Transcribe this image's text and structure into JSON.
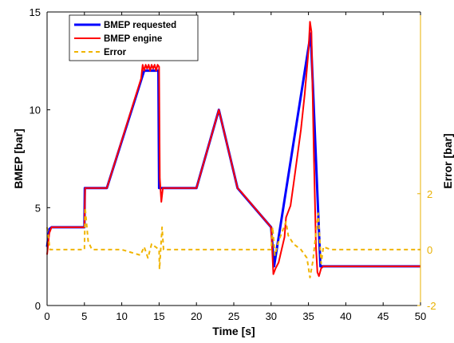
{
  "chart_data": {
    "type": "line",
    "xlabel": "Time [s]",
    "ylabel": "BMEP [bar]",
    "y2label": "Error [bar]",
    "xlim": [
      0,
      50
    ],
    "ylim": [
      0,
      15
    ],
    "y2lim": [
      -2,
      8.5
    ],
    "x_ticks": [
      "0",
      "5",
      "10",
      "15",
      "20",
      "25",
      "30",
      "35",
      "40",
      "45",
      "50"
    ],
    "y_ticks": [
      "0",
      "5",
      "10",
      "15"
    ],
    "y2_ticks": [
      "-2",
      "0",
      "2"
    ],
    "grid": false,
    "legend_position": "top-left",
    "colors": {
      "requested": "#0000ff",
      "engine": "#ff0000",
      "error": "#f0b400",
      "y2_axis": "#e8b000"
    },
    "series": [
      {
        "name": "BMEP requested",
        "style": "solid",
        "axis": "left",
        "x": [
          0,
          0.3,
          0.6,
          5,
          5.05,
          8,
          13,
          14.9,
          15,
          16,
          20,
          23,
          25.5,
          30,
          30.4,
          35.3,
          36.6,
          37,
          50
        ],
        "y": [
          3.0,
          3.9,
          4.0,
          4.0,
          6.0,
          6.0,
          12.0,
          12.0,
          6.0,
          6.0,
          6.0,
          10.0,
          6.0,
          4.0,
          2.0,
          13.9,
          2.0,
          2.0,
          2.0
        ]
      },
      {
        "name": "BMEP engine",
        "style": "solid",
        "axis": "left",
        "x": [
          0,
          0.3,
          0.6,
          5,
          5.1,
          8,
          12.6,
          12.8,
          13,
          13.2,
          13.4,
          13.6,
          13.8,
          14,
          14.2,
          14.4,
          14.6,
          14.8,
          15,
          15.1,
          15.3,
          15.5,
          16,
          20,
          23,
          25.5,
          26,
          30,
          30.3,
          30.6,
          31,
          31.8,
          32,
          32.3,
          32.6,
          33,
          34,
          34.5,
          35,
          35.2,
          35.4,
          35.7,
          36,
          36.2,
          36.4,
          36.7,
          37,
          38,
          50
        ],
        "y": [
          2.6,
          3.7,
          4.0,
          4.0,
          6.0,
          6.0,
          11.6,
          12.3,
          12.0,
          12.3,
          12.1,
          12.3,
          12.0,
          12.3,
          12.1,
          12.3,
          12.0,
          12.3,
          12.2,
          6.5,
          5.3,
          6.0,
          6.0,
          6.0,
          10.0,
          6.0,
          5.8,
          4.0,
          1.6,
          1.9,
          2.2,
          3.5,
          4.5,
          4.8,
          5.1,
          6.2,
          9.0,
          10.8,
          13.0,
          14.5,
          14.0,
          8.0,
          3.0,
          1.7,
          1.5,
          1.9,
          2.0,
          2.0,
          2.0
        ]
      },
      {
        "name": "Error",
        "style": "dashed",
        "axis": "right",
        "x": [
          0,
          0.4,
          1,
          5,
          5.1,
          5.5,
          6,
          8,
          10,
          12.5,
          13,
          13.5,
          14,
          15,
          15.05,
          15.4,
          15.6,
          16,
          20,
          25,
          30,
          30.2,
          30.5,
          31,
          32,
          32.3,
          33,
          34,
          34.8,
          35.2,
          35.6,
          36,
          36.3,
          36.7,
          37,
          38,
          50
        ],
        "y": [
          0.8,
          0.0,
          0.0,
          0.0,
          1.5,
          0.3,
          0.0,
          0.0,
          0.0,
          -0.2,
          0.1,
          -0.3,
          0.2,
          0.0,
          -0.7,
          0.8,
          0.0,
          0.0,
          0.0,
          0.0,
          0.0,
          0.8,
          -0.2,
          0.3,
          1.0,
          0.5,
          0.2,
          0.0,
          -0.3,
          -1.0,
          -0.4,
          0.6,
          1.3,
          -0.5,
          0.1,
          0.0,
          0.0
        ]
      }
    ]
  }
}
